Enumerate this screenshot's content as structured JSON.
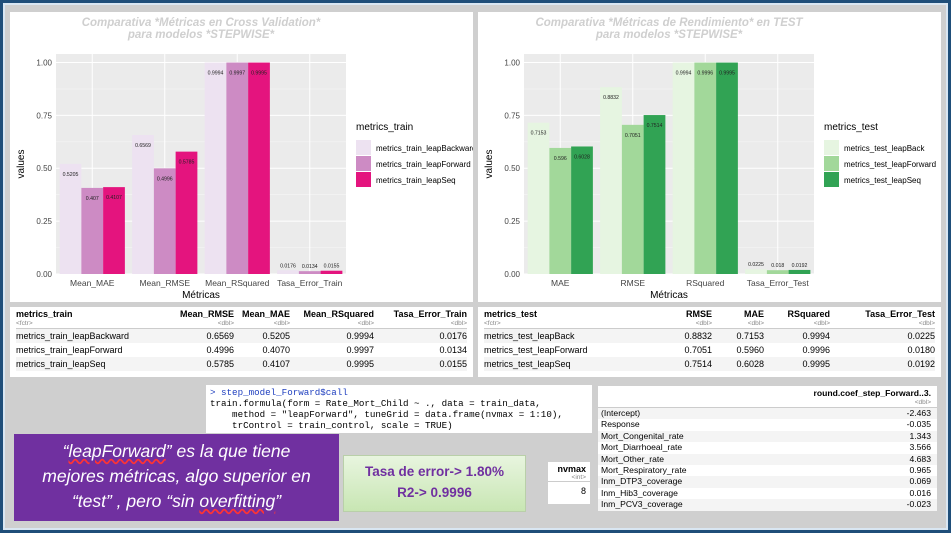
{
  "chart_data": [
    {
      "type": "bar",
      "title": "Comparativa *Métricas en Cross Validation*\npara modelos *STEPWISE*",
      "xlabel": "Métricas",
      "ylabel": "values",
      "ylim": [
        0,
        1.04
      ],
      "yticks": [
        "0.00",
        "0.25",
        "0.50",
        "0.75",
        "1.00"
      ],
      "categories": [
        "Mean_MAE",
        "Mean_RMSE",
        "Mean_RSquared",
        "Tasa_Error_Train"
      ],
      "legend_title": "metrics_train",
      "series": [
        {
          "name": "metrics_train_leapBackward",
          "color": "#ede2f1",
          "values": [
            0.5205,
            0.6569,
            0.9994,
            0.0176
          ],
          "labels": [
            "0.5205",
            "0.6569",
            "0.9994",
            "0.0176"
          ]
        },
        {
          "name": "metrics_train_leapForward",
          "color": "#cd8bc4",
          "values": [
            0.407,
            0.4996,
            0.9997,
            0.0134
          ],
          "labels": [
            "0.407",
            "0.4996",
            "0.9997",
            "0.0134"
          ]
        },
        {
          "name": "metrics_train_leapSeq",
          "color": "#e4147e",
          "values": [
            0.4107,
            0.5785,
            0.9995,
            0.0155
          ],
          "labels": [
            "0.4107",
            "0.5785",
            "0.9995",
            "0.0155"
          ]
        }
      ]
    },
    {
      "type": "bar",
      "title": "Comparativa *Métricas de Rendimiento* en TEST\npara modelos *STEPWISE*",
      "xlabel": "Métricas",
      "ylabel": "values",
      "ylim": [
        0,
        1.04
      ],
      "yticks": [
        "0.00",
        "0.25",
        "0.50",
        "0.75",
        "1.00"
      ],
      "categories": [
        "MAE",
        "RMSE",
        "RSquared",
        "Tasa_Error_Test"
      ],
      "legend_title": "metrics_test",
      "series": [
        {
          "name": "metrics_test_leapBack",
          "color": "#e6f5e1",
          "values": [
            0.7153,
            0.8832,
            0.9994,
            0.0225
          ],
          "labels": [
            "0.7153",
            "0.8832",
            "0.9994",
            "0.0225"
          ]
        },
        {
          "name": "metrics_test_leapForward",
          "color": "#a2d89a",
          "values": [
            0.596,
            0.7051,
            0.9996,
            0.018
          ],
          "labels": [
            "0.596",
            "0.7051",
            "0.9996",
            "0.018"
          ]
        },
        {
          "name": "metrics_test_leapSeq",
          "color": "#31a354",
          "values": [
            0.6028,
            0.7514,
            0.9995,
            0.0192
          ],
          "labels": [
            "0.6028",
            "0.7514",
            "0.9995",
            "0.0192"
          ]
        }
      ]
    }
  ],
  "train_table": {
    "headers": [
      "metrics_train",
      "Mean_RMSE",
      "Mean_MAE",
      "Mean_RSquared",
      "Tasa_Error_Train"
    ],
    "types": [
      "<fctr>",
      "<dbl>",
      "<dbl>",
      "<dbl>",
      "<dbl>"
    ],
    "rows": [
      [
        "metrics_train_leapBackward",
        "0.6569",
        "0.5205",
        "0.9994",
        "0.0176"
      ],
      [
        "metrics_train_leapForward",
        "0.4996",
        "0.4070",
        "0.9997",
        "0.0134"
      ],
      [
        "metrics_train_leapSeq",
        "0.5785",
        "0.4107",
        "0.9995",
        "0.0155"
      ]
    ]
  },
  "test_table": {
    "headers": [
      "metrics_test",
      "RMSE",
      "MAE",
      "RSquared",
      "Tasa_Error_Test"
    ],
    "types": [
      "<fctr>",
      "<dbl>",
      "<dbl>",
      "<dbl>",
      "<dbl>"
    ],
    "rows": [
      [
        "metrics_test_leapBack",
        "0.8832",
        "0.7153",
        "0.9994",
        "0.0225"
      ],
      [
        "metrics_test_leapForward",
        "0.7051",
        "0.5960",
        "0.9996",
        "0.0180"
      ],
      [
        "metrics_test_leapSeq",
        "0.7514",
        "0.6028",
        "0.9995",
        "0.0192"
      ]
    ]
  },
  "console": {
    "prompt": "> ",
    "command": "step_model_Forward$call",
    "output": [
      "train.formula(form = Rate_Mort_Child ~ ., data = train_data,",
      "    method = \"leapForward\", tuneGrid = data.frame(nvmax = 1:10),",
      "    trControl = train_control, scale = TRUE)"
    ]
  },
  "note": {
    "line1_a": "“",
    "line1_b": "leapForward",
    "line1_c": "” es la que tiene",
    "line2": "mejores métricas, algo superior en",
    "line3_a": "“test” , pero “sin ",
    "line3_b": "overfitting",
    "line3_c": "”"
  },
  "summary": {
    "error_rate": "Tasa de error-> 1.80%",
    "r2": "R2-> 0.9996"
  },
  "nvmax_table": {
    "header": "nvmax",
    "type": "<int>",
    "value": "8"
  },
  "coef_table": {
    "header": "round.coef_step_Forward..3.",
    "type": "<dbl>",
    "rows": [
      [
        "(Intercept)",
        "-2.463"
      ],
      [
        "Response",
        "-0.035"
      ],
      [
        "Mort_Congenital_rate",
        "1.343"
      ],
      [
        "Mort_Diarrhoeal_rate",
        "3.566"
      ],
      [
        "Mort_Other_rate",
        "4.683"
      ],
      [
        "Mort_Respiratory_rate",
        "0.965"
      ],
      [
        "Inm_DTP3_coverage",
        "0.069"
      ],
      [
        "Inm_Hib3_coverage",
        "0.016"
      ],
      [
        "Inm_PCV3_coverage",
        "-0.023"
      ]
    ]
  }
}
